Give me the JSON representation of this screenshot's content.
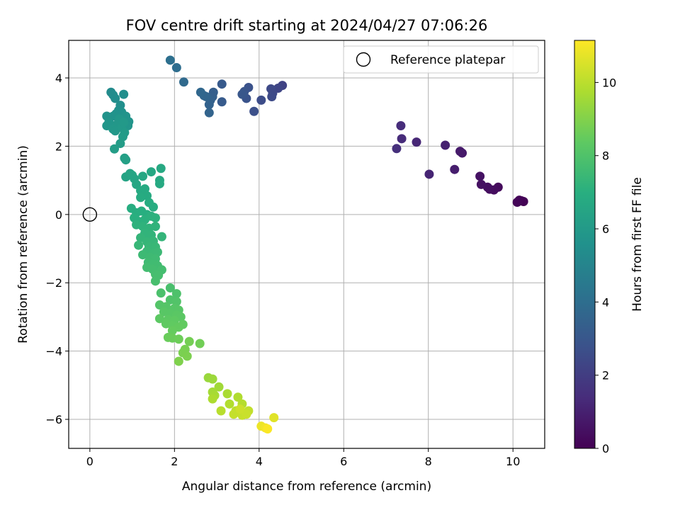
{
  "chart_data": {
    "type": "scatter",
    "title": "FOV centre drift starting at 2024/04/27 07:06:26",
    "xlabel": "Angular distance from reference (arcmin)",
    "ylabel": "Rotation from reference (arcmin)",
    "xlim": [
      -0.5,
      10.75
    ],
    "ylim": [
      -6.85,
      5.1
    ],
    "xticks": [
      0,
      2,
      4,
      6,
      8,
      10
    ],
    "yticks": [
      -6,
      -4,
      -2,
      0,
      2,
      4
    ],
    "grid": true,
    "legend": {
      "placement": "upper-right",
      "entries": [
        "Reference platepar"
      ]
    },
    "reference_point": {
      "x": 0,
      "y": 0,
      "label": "Reference platepar"
    },
    "colorbar": {
      "label": "Hours from first FF file",
      "min": 0,
      "max": 11.15,
      "ticks": [
        0,
        2,
        4,
        6,
        8,
        10
      ],
      "colormap": "viridis"
    },
    "points": [
      [
        10.2,
        0.4,
        0.0
      ],
      [
        10.25,
        0.38,
        0.05
      ],
      [
        10.15,
        0.42,
        0.1
      ],
      [
        10.1,
        0.36,
        0.15
      ],
      [
        9.65,
        0.8,
        0.3
      ],
      [
        9.55,
        0.72,
        0.35
      ],
      [
        9.45,
        0.74,
        0.4
      ],
      [
        9.4,
        0.8,
        0.45
      ],
      [
        9.25,
        0.88,
        0.5
      ],
      [
        9.22,
        1.12,
        0.55
      ],
      [
        8.8,
        1.8,
        0.75
      ],
      [
        8.75,
        1.85,
        0.8
      ],
      [
        8.62,
        1.32,
        0.9
      ],
      [
        8.4,
        2.03,
        1.0
      ],
      [
        8.02,
        1.18,
        1.1
      ],
      [
        7.72,
        2.12,
        1.2
      ],
      [
        7.37,
        2.22,
        1.35
      ],
      [
        7.35,
        2.6,
        1.4
      ],
      [
        7.25,
        1.93,
        1.5
      ],
      [
        4.55,
        3.78,
        2.2
      ],
      [
        4.45,
        3.7,
        2.3
      ],
      [
        4.32,
        3.55,
        2.4
      ],
      [
        4.28,
        3.68,
        2.45
      ],
      [
        4.3,
        3.45,
        2.5
      ],
      [
        4.05,
        3.35,
        2.6
      ],
      [
        3.88,
        3.02,
        2.7
      ],
      [
        3.75,
        3.72,
        2.8
      ],
      [
        3.7,
        3.4,
        2.85
      ],
      [
        3.65,
        3.6,
        2.9
      ],
      [
        3.6,
        3.52,
        3.0
      ],
      [
        3.12,
        3.82,
        3.15
      ],
      [
        3.12,
        3.3,
        3.2
      ],
      [
        2.92,
        3.58,
        3.3
      ],
      [
        2.9,
        3.45,
        3.35
      ],
      [
        2.85,
        3.35,
        3.45
      ],
      [
        2.82,
        3.22,
        3.5
      ],
      [
        2.82,
        2.98,
        3.55
      ],
      [
        2.75,
        3.45,
        3.6
      ],
      [
        2.7,
        3.48,
        3.65
      ],
      [
        2.62,
        3.58,
        3.7
      ],
      [
        2.22,
        3.88,
        3.85
      ],
      [
        2.05,
        4.3,
        3.95
      ],
      [
        1.9,
        4.52,
        4.05
      ],
      [
        0.5,
        3.58,
        5.3
      ],
      [
        0.55,
        3.5,
        5.35
      ],
      [
        0.6,
        3.4,
        5.4
      ],
      [
        0.8,
        3.52,
        5.45
      ],
      [
        0.72,
        3.2,
        5.5
      ],
      [
        0.68,
        3.05,
        5.55
      ],
      [
        0.75,
        3.0,
        5.6
      ],
      [
        0.62,
        2.95,
        5.62
      ],
      [
        0.55,
        2.88,
        5.65
      ],
      [
        0.4,
        2.88,
        5.68
      ],
      [
        0.85,
        2.88,
        5.7
      ],
      [
        0.92,
        2.72,
        5.72
      ],
      [
        0.9,
        2.6,
        5.75
      ],
      [
        0.45,
        2.7,
        5.78
      ],
      [
        0.5,
        2.62,
        5.8
      ],
      [
        0.4,
        2.6,
        5.82
      ],
      [
        0.7,
        2.8,
        5.85
      ],
      [
        0.65,
        2.65,
        5.88
      ],
      [
        0.55,
        2.5,
        5.9
      ],
      [
        0.6,
        2.45,
        5.92
      ],
      [
        0.75,
        2.55,
        5.95
      ],
      [
        0.8,
        2.7,
        5.97
      ],
      [
        0.82,
        2.4,
        6.0
      ],
      [
        0.78,
        2.28,
        6.05
      ],
      [
        0.72,
        2.08,
        6.1
      ],
      [
        0.58,
        1.92,
        6.15
      ],
      [
        0.82,
        1.65,
        6.25
      ],
      [
        0.85,
        1.6,
        6.3
      ],
      [
        0.85,
        1.1,
        6.45
      ],
      [
        0.95,
        1.2,
        6.5
      ],
      [
        1.0,
        1.15,
        6.52
      ],
      [
        1.05,
        1.05,
        6.55
      ],
      [
        1.1,
        0.88,
        6.6
      ],
      [
        1.25,
        1.12,
        6.62
      ],
      [
        1.45,
        1.25,
        6.65
      ],
      [
        1.68,
        1.35,
        6.68
      ],
      [
        1.65,
        1.0,
        6.7
      ],
      [
        1.65,
        0.9,
        6.72
      ],
      [
        1.2,
        0.7,
        6.75
      ],
      [
        1.3,
        0.75,
        6.78
      ],
      [
        1.35,
        0.55,
        6.8
      ],
      [
        1.2,
        0.5,
        6.82
      ],
      [
        1.4,
        0.35,
        6.85
      ],
      [
        1.5,
        0.22,
        6.88
      ],
      [
        0.98,
        0.18,
        6.9
      ],
      [
        1.1,
        0.05,
        6.92
      ],
      [
        1.22,
        0.1,
        6.95
      ],
      [
        1.35,
        0.0,
        6.98
      ],
      [
        1.05,
        -0.1,
        7.0
      ],
      [
        1.15,
        -0.2,
        7.02
      ],
      [
        1.3,
        -0.15,
        7.05
      ],
      [
        1.45,
        -0.05,
        7.08
      ],
      [
        1.55,
        -0.1,
        7.1
      ],
      [
        1.1,
        -0.3,
        7.12
      ],
      [
        1.25,
        -0.35,
        7.15
      ],
      [
        1.4,
        -0.4,
        7.18
      ],
      [
        1.55,
        -0.35,
        7.2
      ],
      [
        1.3,
        -0.55,
        7.22
      ],
      [
        1.45,
        -0.6,
        7.25
      ],
      [
        1.7,
        -0.65,
        7.28
      ],
      [
        1.2,
        -0.68,
        7.3
      ],
      [
        1.35,
        -0.8,
        7.32
      ],
      [
        1.5,
        -0.78,
        7.35
      ],
      [
        1.15,
        -0.9,
        7.38
      ],
      [
        1.4,
        -0.95,
        7.4
      ],
      [
        1.55,
        -0.95,
        7.42
      ],
      [
        1.35,
        -1.08,
        7.45
      ],
      [
        1.5,
        -1.15,
        7.48
      ],
      [
        1.6,
        -1.1,
        7.5
      ],
      [
        1.25,
        -1.18,
        7.52
      ],
      [
        1.42,
        -1.25,
        7.55
      ],
      [
        1.55,
        -1.3,
        7.58
      ],
      [
        1.38,
        -1.4,
        7.6
      ],
      [
        1.5,
        -1.45,
        7.62
      ],
      [
        1.6,
        -1.5,
        7.65
      ],
      [
        1.35,
        -1.55,
        7.68
      ],
      [
        1.48,
        -1.6,
        7.7
      ],
      [
        1.7,
        -1.62,
        7.72
      ],
      [
        1.55,
        -1.75,
        7.75
      ],
      [
        1.62,
        -1.78,
        7.78
      ],
      [
        1.55,
        -1.95,
        7.8
      ],
      [
        1.9,
        -2.15,
        7.85
      ],
      [
        1.68,
        -2.3,
        7.9
      ],
      [
        2.05,
        -2.32,
        7.95
      ],
      [
        1.9,
        -2.5,
        8.0
      ],
      [
        2.05,
        -2.55,
        8.05
      ],
      [
        1.65,
        -2.65,
        8.1
      ],
      [
        1.8,
        -2.7,
        8.12
      ],
      [
        2.0,
        -2.75,
        8.15
      ],
      [
        2.1,
        -2.8,
        8.18
      ],
      [
        1.75,
        -2.85,
        8.2
      ],
      [
        1.9,
        -2.9,
        8.22
      ],
      [
        2.05,
        -2.95,
        8.25
      ],
      [
        2.15,
        -3.0,
        8.28
      ],
      [
        1.65,
        -3.05,
        8.3
      ],
      [
        1.85,
        -3.08,
        8.32
      ],
      [
        2.0,
        -3.1,
        8.35
      ],
      [
        1.8,
        -3.2,
        8.38
      ],
      [
        1.95,
        -3.25,
        8.4
      ],
      [
        2.2,
        -3.22,
        8.42
      ],
      [
        2.1,
        -3.3,
        8.45
      ],
      [
        1.95,
        -3.4,
        8.48
      ],
      [
        1.85,
        -3.6,
        8.55
      ],
      [
        1.95,
        -3.62,
        8.58
      ],
      [
        2.1,
        -3.65,
        8.62
      ],
      [
        2.6,
        -3.78,
        8.7
      ],
      [
        2.35,
        -3.72,
        8.75
      ],
      [
        2.25,
        -3.95,
        8.8
      ],
      [
        2.2,
        -4.05,
        8.85
      ],
      [
        2.3,
        -4.15,
        8.9
      ],
      [
        2.1,
        -4.3,
        8.95
      ],
      [
        2.8,
        -4.78,
        9.4
      ],
      [
        2.9,
        -4.82,
        9.45
      ],
      [
        3.05,
        -5.05,
        9.55
      ],
      [
        2.9,
        -5.2,
        9.6
      ],
      [
        2.95,
        -5.3,
        9.65
      ],
      [
        3.25,
        -5.25,
        9.7
      ],
      [
        2.9,
        -5.4,
        9.75
      ],
      [
        3.5,
        -5.35,
        9.8
      ],
      [
        3.3,
        -5.55,
        9.85
      ],
      [
        3.6,
        -5.55,
        9.9
      ],
      [
        3.1,
        -5.75,
        9.95
      ],
      [
        3.45,
        -5.75,
        10.0
      ],
      [
        3.55,
        -5.8,
        10.05
      ],
      [
        3.75,
        -5.75,
        10.1
      ],
      [
        3.4,
        -5.85,
        10.15
      ],
      [
        3.6,
        -5.88,
        10.2
      ],
      [
        3.7,
        -5.85,
        10.25
      ],
      [
        3.55,
        -5.7,
        10.3
      ],
      [
        4.35,
        -5.95,
        10.65
      ],
      [
        4.05,
        -6.2,
        10.85
      ],
      [
        4.15,
        -6.25,
        10.95
      ],
      [
        4.2,
        -6.28,
        11.1
      ]
    ]
  }
}
